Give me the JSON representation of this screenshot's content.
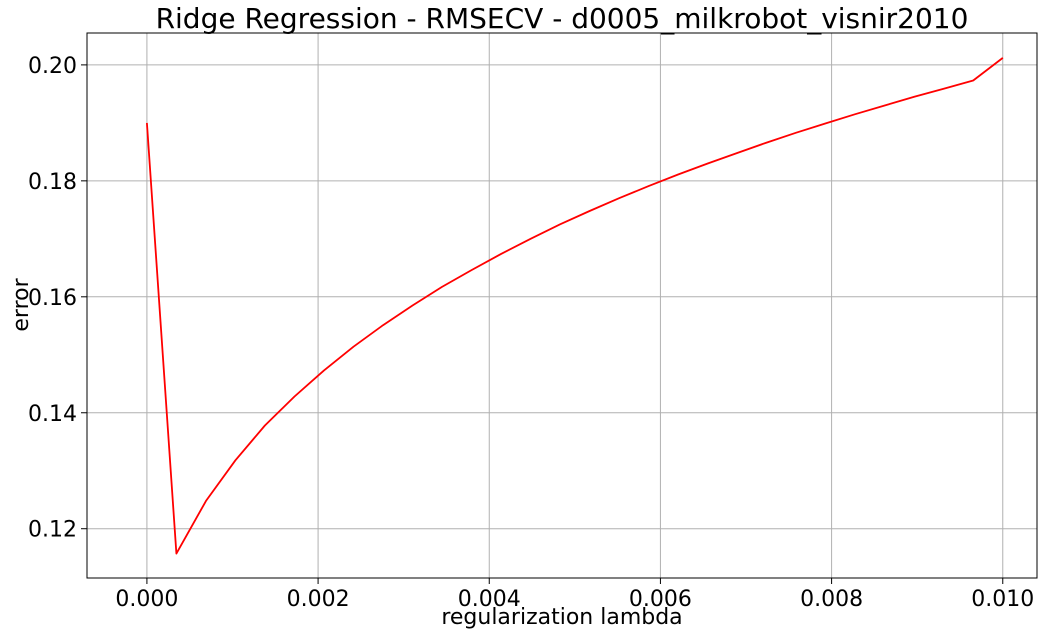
{
  "chart_data": {
    "type": "line",
    "title": "Ridge Regression - RMSECV - d0005_milkrobot_visnir2010",
    "xlabel": "regularization lambda",
    "ylabel": "error",
    "xlim": [
      -0.0007,
      0.0104
    ],
    "ylim": [
      0.1115,
      0.2055
    ],
    "xticks": [
      0.0,
      0.002,
      0.004,
      0.006,
      0.008,
      0.01
    ],
    "xtick_labels": [
      "0.000",
      "0.002",
      "0.004",
      "0.006",
      "0.008",
      "0.010"
    ],
    "yticks": [
      0.12,
      0.14,
      0.16,
      0.18,
      0.2
    ],
    "ytick_labels": [
      "0.12",
      "0.14",
      "0.16",
      "0.18",
      "0.20"
    ],
    "grid": true,
    "series": [
      {
        "color": "#ff0000",
        "x": [
          0.0,
          0.000345,
          0.00069,
          0.001034,
          0.001379,
          0.001724,
          0.002069,
          0.002414,
          0.002759,
          0.003103,
          0.003448,
          0.003793,
          0.004138,
          0.004483,
          0.004828,
          0.005172,
          0.005517,
          0.005862,
          0.006207,
          0.006552,
          0.006897,
          0.007241,
          0.007586,
          0.007931,
          0.008276,
          0.008621,
          0.008966,
          0.00931,
          0.009655,
          0.01
        ],
        "y": [
          0.19,
          0.1157,
          0.1248,
          0.1318,
          0.1378,
          0.1428,
          0.1473,
          0.1514,
          0.1551,
          0.1585,
          0.1617,
          0.1646,
          0.1674,
          0.17,
          0.1725,
          0.1748,
          0.177,
          0.1791,
          0.1811,
          0.183,
          0.1848,
          0.1866,
          0.1883,
          0.1899,
          0.1915,
          0.193,
          0.1945,
          0.1959,
          0.1973,
          0.2012
        ]
      }
    ]
  }
}
